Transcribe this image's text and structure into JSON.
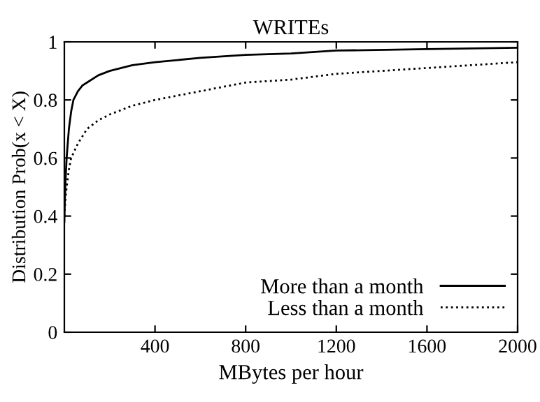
{
  "chart_data": {
    "type": "line",
    "title": "WRITEs",
    "xlabel": "MBytes per hour",
    "ylabel": "Distribution Prob(x < X)",
    "xlim": [
      0,
      2000
    ],
    "ylim": [
      0,
      1
    ],
    "xticks": [
      400,
      800,
      1200,
      1600,
      2000
    ],
    "yticks": [
      0,
      0.2,
      0.4,
      0.6,
      0.8,
      1
    ],
    "grid": false,
    "legend": "bottom right",
    "series": [
      {
        "name": "More than a month",
        "color": "#000000",
        "line_style": "solid",
        "x": [
          0,
          2,
          5,
          10,
          20,
          30,
          40,
          60,
          80,
          100,
          150,
          200,
          300,
          400,
          600,
          800,
          1000,
          1200,
          1600,
          2000
        ],
        "values": [
          0.38,
          0.45,
          0.52,
          0.6,
          0.7,
          0.76,
          0.8,
          0.83,
          0.85,
          0.86,
          0.885,
          0.9,
          0.92,
          0.93,
          0.945,
          0.955,
          0.96,
          0.97,
          0.975,
          0.98
        ]
      },
      {
        "name": "Less than a month",
        "color": "#000000",
        "line_style": "dotted",
        "x": [
          0,
          5,
          10,
          20,
          30,
          60,
          100,
          150,
          200,
          300,
          400,
          600,
          800,
          1000,
          1200,
          1600,
          2000
        ],
        "values": [
          0.4,
          0.46,
          0.5,
          0.56,
          0.6,
          0.65,
          0.7,
          0.73,
          0.75,
          0.78,
          0.8,
          0.83,
          0.86,
          0.87,
          0.89,
          0.91,
          0.93
        ]
      }
    ]
  }
}
